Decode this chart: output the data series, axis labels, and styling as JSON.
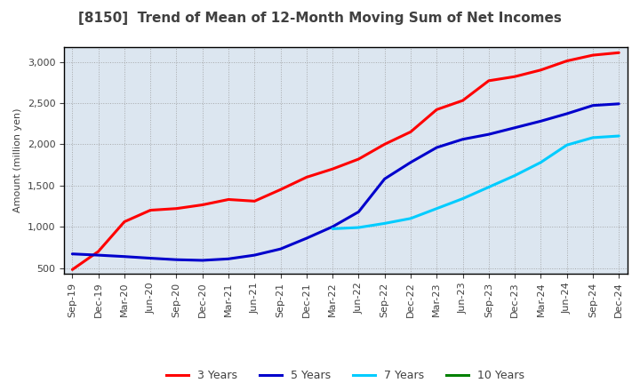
{
  "title": "[8150]  Trend of Mean of 12-Month Moving Sum of Net Incomes",
  "ylabel": "Amount (million yen)",
  "background_color": "#ffffff",
  "plot_bg_color": "#dce6f0",
  "grid_color": "#999999",
  "ylim": [
    430,
    3180
  ],
  "yticks": [
    500,
    1000,
    1500,
    2000,
    2500,
    3000
  ],
  "series": {
    "3 Years": {
      "color": "#ff0000",
      "data": [
        [
          "Sep-19",
          480
        ],
        [
          "Dec-19",
          700
        ],
        [
          "Mar-20",
          1060
        ],
        [
          "Jun-20",
          1200
        ],
        [
          "Sep-20",
          1220
        ],
        [
          "Dec-20",
          1265
        ],
        [
          "Mar-21",
          1330
        ],
        [
          "Jun-21",
          1310
        ],
        [
          "Sep-21",
          1450
        ],
        [
          "Dec-21",
          1600
        ],
        [
          "Mar-22",
          1700
        ],
        [
          "Jun-22",
          1820
        ],
        [
          "Sep-22",
          2000
        ],
        [
          "Dec-22",
          2150
        ],
        [
          "Mar-23",
          2420
        ],
        [
          "Jun-23",
          2530
        ],
        [
          "Sep-23",
          2770
        ],
        [
          "Dec-23",
          2820
        ],
        [
          "Mar-24",
          2900
        ],
        [
          "Jun-24",
          3010
        ],
        [
          "Sep-24",
          3080
        ],
        [
          "Dec-24",
          3110
        ]
      ]
    },
    "5 Years": {
      "color": "#0000cc",
      "data": [
        [
          "Sep-19",
          670
        ],
        [
          "Dec-19",
          655
        ],
        [
          "Mar-20",
          638
        ],
        [
          "Jun-20",
          618
        ],
        [
          "Sep-20",
          600
        ],
        [
          "Dec-20",
          592
        ],
        [
          "Mar-21",
          610
        ],
        [
          "Jun-21",
          655
        ],
        [
          "Sep-21",
          730
        ],
        [
          "Dec-21",
          860
        ],
        [
          "Mar-22",
          1000
        ],
        [
          "Jun-22",
          1180
        ],
        [
          "Sep-22",
          1580
        ],
        [
          "Dec-22",
          1780
        ],
        [
          "Mar-23",
          1960
        ],
        [
          "Jun-23",
          2060
        ],
        [
          "Sep-23",
          2120
        ],
        [
          "Dec-23",
          2200
        ],
        [
          "Mar-24",
          2280
        ],
        [
          "Jun-24",
          2370
        ],
        [
          "Sep-24",
          2470
        ],
        [
          "Dec-24",
          2490
        ]
      ]
    },
    "7 Years": {
      "color": "#00ccff",
      "data": [
        [
          "Mar-22",
          975
        ],
        [
          "Jun-22",
          990
        ],
        [
          "Sep-22",
          1040
        ],
        [
          "Dec-22",
          1100
        ],
        [
          "Mar-23",
          1220
        ],
        [
          "Jun-23",
          1340
        ],
        [
          "Sep-23",
          1480
        ],
        [
          "Dec-23",
          1620
        ],
        [
          "Mar-24",
          1780
        ],
        [
          "Jun-24",
          1990
        ],
        [
          "Sep-24",
          2080
        ],
        [
          "Dec-24",
          2100
        ]
      ]
    },
    "10 Years": {
      "color": "#008000",
      "data": []
    }
  },
  "legend": {
    "labels": [
      "3 Years",
      "5 Years",
      "7 Years",
      "10 Years"
    ],
    "colors": [
      "#ff0000",
      "#0000cc",
      "#00ccff",
      "#008000"
    ]
  },
  "xtick_labels": [
    "Sep-19",
    "Dec-19",
    "Mar-20",
    "Jun-20",
    "Sep-20",
    "Dec-20",
    "Mar-21",
    "Jun-21",
    "Sep-21",
    "Dec-21",
    "Mar-22",
    "Jun-22",
    "Sep-22",
    "Dec-22",
    "Mar-23",
    "Jun-23",
    "Sep-23",
    "Dec-23",
    "Mar-24",
    "Jun-24",
    "Sep-24",
    "Dec-24"
  ],
  "title_color": "#404040",
  "title_fontsize": 11,
  "ylabel_fontsize": 8,
  "tick_fontsize": 8
}
